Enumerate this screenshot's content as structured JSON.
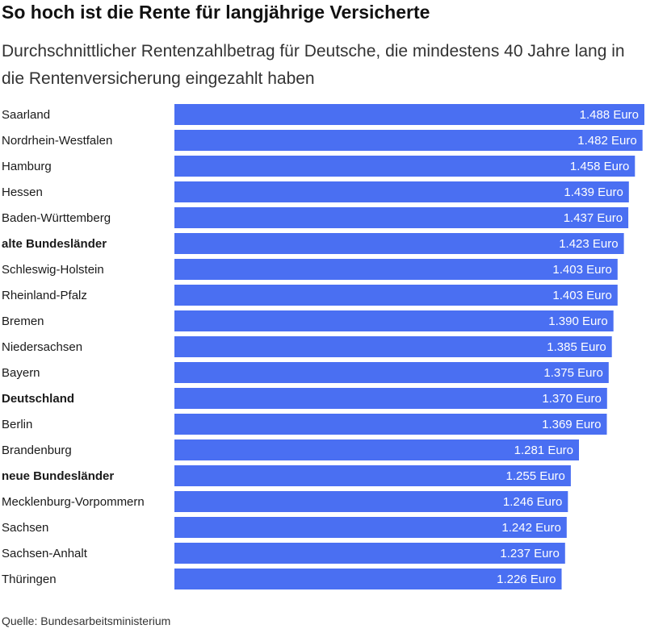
{
  "title": "So hoch ist die Rente für langjährige Versicherte",
  "subtitle": "Durchschnittlicher Rentenzahlbetrag für Deutsche, die mindestens 40 Jahre lang in die Rentenversicherung eingezahlt haben",
  "source": "Quelle: Bundesarbeitsministerium",
  "colors": {
    "bar": "#4a6ff2",
    "label_text": "#ffffff",
    "category_text": "#1a1a1a"
  },
  "chart_data": {
    "type": "bar",
    "orientation": "horizontal",
    "grid": false,
    "unit": "Euro",
    "categories": [
      "Saarland",
      "Nordrhein-Westfalen",
      "Hamburg",
      "Hessen",
      "Baden-Württemberg",
      "alte Bundesländer",
      "Schleswig-Holstein",
      "Rheinland-Pfalz",
      "Bremen",
      "Niedersachsen",
      "Bayern",
      "Deutschland",
      "Berlin",
      "Brandenburg",
      "neue Bundesländer",
      "Mecklenburg-Vorpommern",
      "Sachsen",
      "Sachsen-Anhalt",
      "Thüringen"
    ],
    "values": [
      1488,
      1482,
      1458,
      1439,
      1437,
      1423,
      1403,
      1403,
      1390,
      1385,
      1375,
      1370,
      1369,
      1281,
      1255,
      1246,
      1242,
      1237,
      1226
    ],
    "value_labels": [
      "1.488 Euro",
      "1.482 Euro",
      "1.458 Euro",
      "1.439 Euro",
      "1.437 Euro",
      "1.423 Euro",
      "1.403 Euro",
      "1.403 Euro",
      "1.390 Euro",
      "1.385 Euro",
      "1.375 Euro",
      "1.370 Euro",
      "1.369 Euro",
      "1.281 Euro",
      "1.255 Euro",
      "1.246 Euro",
      "1.242 Euro",
      "1.237 Euro",
      "1.226 Euro"
    ],
    "bold_categories": [
      "alte Bundesländer",
      "Deutschland",
      "neue Bundesländer"
    ]
  }
}
